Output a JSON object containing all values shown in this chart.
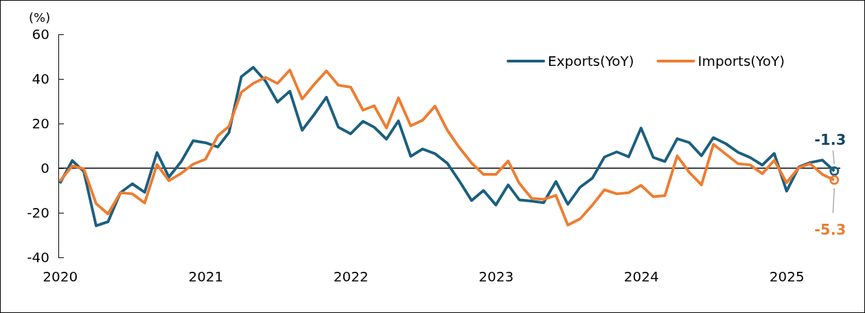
{
  "chart_data": {
    "type": "line",
    "ylabel": "(%)",
    "x": [
      "2020-01",
      "2020-02",
      "2020-03",
      "2020-04",
      "2020-05",
      "2020-06",
      "2020-07",
      "2020-08",
      "2020-09",
      "2020-10",
      "2020-11",
      "2020-12",
      "2021-01",
      "2021-02",
      "2021-03",
      "2021-04",
      "2021-05",
      "2021-06",
      "2021-07",
      "2021-08",
      "2021-09",
      "2021-10",
      "2021-11",
      "2021-12",
      "2022-01",
      "2022-02",
      "2022-03",
      "2022-04",
      "2022-05",
      "2022-06",
      "2022-07",
      "2022-08",
      "2022-09",
      "2022-10",
      "2022-11",
      "2022-12",
      "2023-01",
      "2023-02",
      "2023-03",
      "2023-04",
      "2023-05",
      "2023-06",
      "2023-07",
      "2023-08",
      "2023-09",
      "2023-10",
      "2023-11",
      "2023-12",
      "2024-01",
      "2024-02",
      "2024-03",
      "2024-04",
      "2024-05",
      "2024-06",
      "2024-07",
      "2024-08",
      "2024-09",
      "2024-10",
      "2024-11",
      "2024-12",
      "2025-01",
      "2025-02",
      "2025-03",
      "2025-04",
      "2025-05"
    ],
    "series": [
      {
        "name": "Exports(YoY)",
        "color": "#1b5f7f",
        "values": [
          -6.8,
          3.4,
          -1.5,
          -25.8,
          -24,
          -11,
          -7,
          -10.8,
          7,
          -4,
          3,
          12.3,
          11.4,
          9.5,
          16,
          41,
          45.2,
          39,
          29.6,
          34.5,
          17,
          24,
          31.8,
          18.4,
          15.4,
          21,
          18.4,
          13,
          21.2,
          5.3,
          8.6,
          6.5,
          2.2,
          -5.7,
          -14.5,
          -10,
          -16.5,
          -7.5,
          -14.2,
          -14.8,
          -15.5,
          -6,
          -16.2,
          -8.5,
          -4.4,
          5,
          7.3,
          5.1,
          18,
          4.8,
          3,
          13.2,
          11.5,
          5.6,
          13.7,
          11,
          7.1,
          4.8,
          1.4,
          6.6,
          -10.3,
          0.6,
          2.5,
          3.6,
          -1.3
        ],
        "value_labels": [
          null,
          null,
          null,
          null,
          null,
          null,
          null,
          null,
          null,
          null,
          null,
          null,
          null,
          null,
          null,
          null,
          null,
          null,
          null,
          null,
          null,
          null,
          null,
          null,
          null,
          null,
          null,
          null,
          null,
          null,
          null,
          null,
          null,
          null,
          null,
          null,
          null,
          null,
          null,
          null,
          null,
          null,
          null,
          null,
          null,
          null,
          null,
          null,
          null,
          null,
          null,
          null,
          null,
          null,
          null,
          null,
          null,
          null,
          null,
          null,
          null,
          null,
          null,
          null,
          "-1.3"
        ]
      },
      {
        "name": "Imports(YoY)",
        "color": "#ed7d31",
        "values": [
          -5.8,
          1,
          -0.3,
          -15.9,
          -20.5,
          -11,
          -11.5,
          -15.6,
          1.6,
          -5.6,
          -2.3,
          1.8,
          4,
          14.5,
          18.8,
          34,
          38,
          40.7,
          38,
          44,
          31,
          37.5,
          43.6,
          37.2,
          36.3,
          26,
          28,
          18,
          31.5,
          19,
          21.5,
          27.8,
          17,
          9.3,
          2.3,
          -2.8,
          -2.8,
          3.2,
          -6.8,
          -13.5,
          -14,
          -12.2,
          -25.5,
          -22.7,
          -16.5,
          -9.7,
          -11.5,
          -11,
          -7.7,
          -12.8,
          -12.3,
          5.5,
          -1.8,
          -7.5,
          10.7,
          6.3,
          2,
          1.5,
          -2.5,
          3.5,
          -6.5,
          0.3,
          2,
          -2.8,
          -5.3
        ],
        "value_labels": [
          null,
          null,
          null,
          null,
          null,
          null,
          null,
          null,
          null,
          null,
          null,
          null,
          null,
          null,
          null,
          null,
          null,
          null,
          null,
          null,
          null,
          null,
          null,
          null,
          null,
          null,
          null,
          null,
          null,
          null,
          null,
          null,
          null,
          null,
          null,
          null,
          null,
          null,
          null,
          null,
          null,
          null,
          null,
          null,
          null,
          null,
          null,
          null,
          null,
          null,
          null,
          null,
          null,
          null,
          null,
          null,
          null,
          null,
          null,
          null,
          null,
          null,
          null,
          null,
          "-5.3"
        ]
      }
    ],
    "xlim": [
      "2019-12-28",
      "2025-05-16"
    ],
    "xticks": [
      {
        "value": "2020-01",
        "label": "2020"
      },
      {
        "value": "2021-01",
        "label": "2021"
      },
      {
        "value": "2022-01",
        "label": "2022"
      },
      {
        "value": "2023-01",
        "label": "2023"
      },
      {
        "value": "2024-01",
        "label": "2024"
      },
      {
        "value": "2025-01",
        "label": "2025"
      }
    ],
    "ylim": [
      -40,
      60
    ],
    "yticks": [
      -40,
      -20,
      0,
      20,
      40,
      60
    ],
    "ref_lines": [
      {
        "axis": "y",
        "value": 0,
        "color": "#000000"
      }
    ],
    "grid": false,
    "legend": "top right"
  }
}
